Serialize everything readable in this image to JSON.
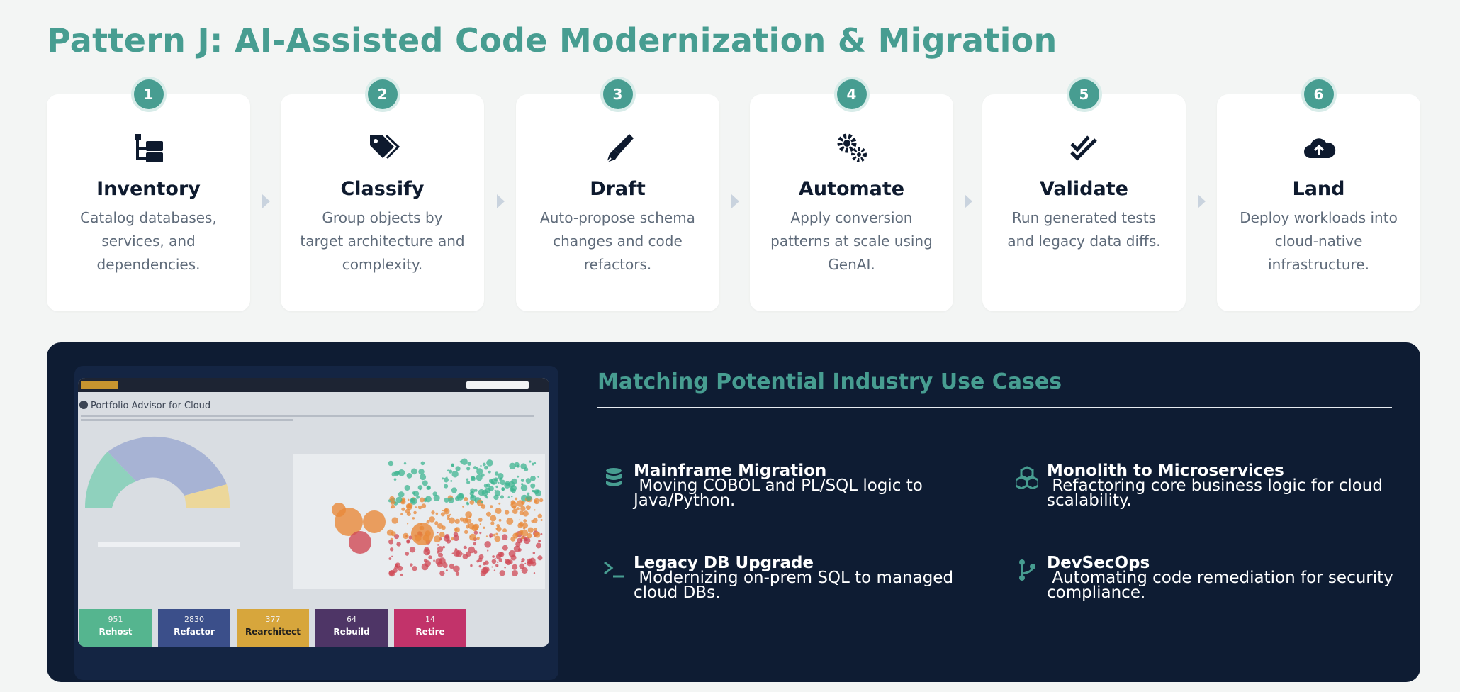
{
  "header": {
    "title": "Pattern J: AI-Assisted Code Modernization & Migration"
  },
  "steps": [
    {
      "number": "1",
      "title": "Inventory",
      "description": "Catalog databases, services, and dependencies."
    },
    {
      "number": "2",
      "title": "Classify",
      "description": "Group objects by target architecture and complexity."
    },
    {
      "number": "3",
      "title": "Draft",
      "description": "Auto-propose schema changes and code refactors."
    },
    {
      "number": "4",
      "title": "Automate",
      "description": "Apply conversion patterns at scale using GenAI."
    },
    {
      "number": "5",
      "title": "Validate",
      "description": "Run generated tests and legacy data diffs."
    },
    {
      "number": "6",
      "title": "Land",
      "description": "Deploy workloads into cloud-native infrastructure."
    }
  ],
  "screenshot": {
    "title": "Portfolio Advisor for Cloud",
    "tiles": [
      {
        "count": "951",
        "label": "Rehost"
      },
      {
        "count": "2830",
        "label": "Refactor"
      },
      {
        "count": "377",
        "label": "Rearchitect"
      },
      {
        "count": "64",
        "label": "Rebuild"
      },
      {
        "count": "14",
        "label": "Retire"
      }
    ]
  },
  "use_cases": {
    "heading": "Matching Potential Industry Use Cases",
    "items": [
      {
        "title": "Mainframe Migration",
        "description": " Moving COBOL and PL/SQL logic to Java/Python."
      },
      {
        "title": "Monolith to Microservices",
        "description": " Refactoring core business logic for cloud scalability."
      },
      {
        "title": "Legacy DB Upgrade",
        "description": " Modernizing on-prem SQL to managed cloud DBs."
      },
      {
        "title": "DevSecOps",
        "description": " Automating code remediation for security compliance."
      }
    ]
  }
}
